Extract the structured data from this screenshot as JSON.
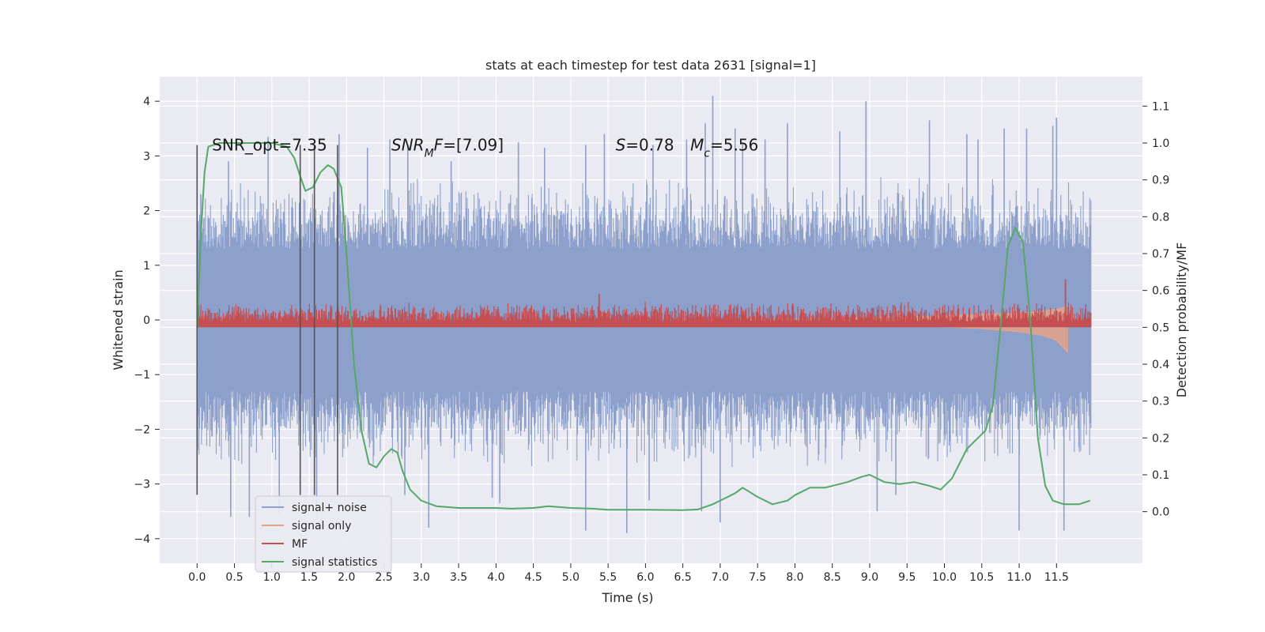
{
  "chart_data": {
    "type": "line",
    "title": "stats at each timestep for test data 2631 [signal=1]",
    "xlabel": "Time (s)",
    "ylabel": "Whitened strain",
    "ylabel_right": "Detection probability/MF",
    "xlim": [
      -0.5,
      12.65
    ],
    "ylim": [
      -4.45,
      4.45
    ],
    "ylim_right": [
      -0.14,
      1.18
    ],
    "x_ticks": [
      0.0,
      0.5,
      1.0,
      1.5,
      2.0,
      2.5,
      3.0,
      3.5,
      4.0,
      4.5,
      5.0,
      5.5,
      6.0,
      6.5,
      7.0,
      7.5,
      8.0,
      8.5,
      9.0,
      9.5,
      10.0,
      10.5,
      11.0,
      11.5
    ],
    "x_tick_labels": [
      "0.0",
      "0.5",
      "1.0",
      "1.5",
      "2.0",
      "2.5",
      "3.0",
      "3.5",
      "4.0",
      "4.5",
      "5.0",
      "5.5",
      "6.0",
      "6.5",
      "7.0",
      "7.5",
      "8.0",
      "8.5",
      "9.0",
      "9.5",
      "10.0",
      "10.5",
      "11.0",
      "11.5"
    ],
    "y_ticks": [
      4,
      3,
      2,
      1,
      0,
      -1,
      -2,
      -3,
      -4
    ],
    "y_tick_labels": [
      "4",
      "3",
      "2",
      "1",
      "0",
      "−1",
      "−2",
      "−3",
      "−4"
    ],
    "y_right_ticks": [
      1.1,
      1.0,
      0.9,
      0.8,
      0.7,
      0.6,
      0.5,
      0.4,
      0.3,
      0.2,
      0.1,
      0.0
    ],
    "y_right_tick_labels": [
      "1.1",
      "1.0",
      "0.9",
      "0.8",
      "0.7",
      "0.6",
      "0.5",
      "0.4",
      "0.3",
      "0.2",
      "0.1",
      "0.0"
    ],
    "grid": true,
    "legend_position": "lower-left",
    "series": [
      {
        "name": "signal+ noise",
        "color": "#8da0cb",
        "axis": "left",
        "x_range": [
          0.0,
          11.96
        ],
        "envelope_upper_typical": 1.8,
        "envelope_lower_typical": -1.9,
        "peaks_upper": [
          [
            0.05,
            2.3
          ],
          [
            0.42,
            2.9
          ],
          [
            0.95,
            3.35
          ],
          [
            1.9,
            3.4
          ],
          [
            2.28,
            3.15
          ],
          [
            2.58,
            3.3
          ],
          [
            2.82,
            3.2
          ],
          [
            3.4,
            2.9
          ],
          [
            4.3,
            3.25
          ],
          [
            4.65,
            3.15
          ],
          [
            5.2,
            3.2
          ],
          [
            5.45,
            3.4
          ],
          [
            6.1,
            3.2
          ],
          [
            6.55,
            3.3
          ],
          [
            6.8,
            3.6
          ],
          [
            6.9,
            4.1
          ],
          [
            7.2,
            3.5
          ],
          [
            7.3,
            3.25
          ],
          [
            7.6,
            3.3
          ],
          [
            7.9,
            3.6
          ],
          [
            8.6,
            3.45
          ],
          [
            8.95,
            4.0
          ],
          [
            9.8,
            3.65
          ],
          [
            10.3,
            3.4
          ],
          [
            10.45,
            3.3
          ],
          [
            10.8,
            3.5
          ],
          [
            11.1,
            3.5
          ],
          [
            11.45,
            3.55
          ],
          [
            11.5,
            3.7
          ]
        ],
        "peaks_lower": [
          [
            0.45,
            -3.6
          ],
          [
            0.7,
            -3.6
          ],
          [
            1.1,
            -3.55
          ],
          [
            1.6,
            -3.6
          ],
          [
            2.78,
            -3.2
          ],
          [
            3.1,
            -3.8
          ],
          [
            3.95,
            -3.25
          ],
          [
            4.05,
            -3.35
          ],
          [
            5.2,
            -3.85
          ],
          [
            5.75,
            -3.9
          ],
          [
            6.05,
            -3.3
          ],
          [
            6.75,
            -3.5
          ],
          [
            7.0,
            -3.7
          ],
          [
            9.1,
            -3.5
          ],
          [
            9.35,
            -3.2
          ],
          [
            11.0,
            -3.85
          ],
          [
            11.6,
            -3.85
          ]
        ]
      },
      {
        "name": "signal only",
        "color": "#e5a288",
        "axis": "left",
        "x": [
          6.8,
          7.5,
          8.0,
          8.5,
          9.0,
          9.5,
          10.0,
          10.5,
          11.0,
          11.3,
          11.5,
          11.65
        ],
        "upper": [
          0.0,
          0.01,
          0.02,
          0.03,
          0.05,
          0.06,
          0.08,
          0.1,
          0.13,
          0.16,
          0.2,
          0.25
        ],
        "lower": [
          0.0,
          -0.02,
          -0.04,
          -0.06,
          -0.08,
          -0.1,
          -0.13,
          -0.16,
          -0.22,
          -0.28,
          -0.38,
          -0.6
        ]
      },
      {
        "name": "MF",
        "color": "#c44e52",
        "axis": "right",
        "x_range": [
          0.0,
          11.96
        ],
        "baseline": 0.5,
        "band_upper_typical": 0.55,
        "spikes": [
          [
            0.02,
            0.56
          ],
          [
            5.38,
            0.59
          ],
          [
            11.62,
            0.63
          ]
        ]
      },
      {
        "name": "signal statistics",
        "color": "#55a868",
        "axis": "right",
        "x": [
          0.0,
          0.05,
          0.1,
          0.15,
          0.3,
          0.5,
          0.8,
          1.0,
          1.2,
          1.3,
          1.38,
          1.45,
          1.55,
          1.65,
          1.75,
          1.83,
          1.93,
          2.0,
          2.1,
          2.2,
          2.3,
          2.4,
          2.5,
          2.6,
          2.68,
          2.75,
          2.85,
          3.0,
          3.2,
          3.5,
          4.0,
          4.2,
          4.5,
          4.7,
          5.0,
          5.3,
          5.5,
          6.0,
          6.5,
          6.7,
          6.9,
          7.1,
          7.2,
          7.3,
          7.5,
          7.7,
          7.9,
          8.0,
          8.2,
          8.4,
          8.7,
          8.9,
          9.0,
          9.2,
          9.4,
          9.6,
          9.8,
          9.95,
          10.1,
          10.3,
          10.45,
          10.55,
          10.65,
          10.75,
          10.85,
          10.95,
          11.05,
          11.15,
          11.25,
          11.35,
          11.45,
          11.6,
          11.8,
          11.95
        ],
        "y": [
          0.5,
          0.75,
          0.92,
          0.99,
          1.0,
          1.0,
          1.0,
          1.0,
          0.99,
          0.96,
          0.91,
          0.87,
          0.88,
          0.92,
          0.94,
          0.93,
          0.88,
          0.7,
          0.4,
          0.22,
          0.13,
          0.12,
          0.15,
          0.17,
          0.16,
          0.11,
          0.06,
          0.03,
          0.015,
          0.01,
          0.01,
          0.008,
          0.01,
          0.015,
          0.01,
          0.008,
          0.005,
          0.005,
          0.004,
          0.006,
          0.02,
          0.04,
          0.05,
          0.065,
          0.04,
          0.02,
          0.03,
          0.045,
          0.065,
          0.065,
          0.08,
          0.095,
          0.1,
          0.08,
          0.075,
          0.08,
          0.07,
          0.06,
          0.09,
          0.17,
          0.2,
          0.22,
          0.29,
          0.5,
          0.72,
          0.77,
          0.73,
          0.52,
          0.2,
          0.07,
          0.03,
          0.02,
          0.02,
          0.03
        ]
      }
    ],
    "vertical_lines": [
      {
        "x": 0.0,
        "y_top": 3.2,
        "y_bottom": -3.2
      },
      {
        "x": 1.38,
        "y_top": 3.2,
        "y_bottom": -3.2
      },
      {
        "x": 1.57,
        "y_top": 3.2,
        "y_bottom": -3.2
      },
      {
        "x": 1.88,
        "y_top": 3.2,
        "y_bottom": -3.2
      }
    ],
    "annotations": [
      {
        "text": "SNR_opt=7.35",
        "x": 0.2,
        "y": 3.2
      },
      {
        "text_parts": [
          {
            "t": "SNR",
            "i": true
          },
          {
            "t": "M",
            "i": true,
            "sub": true
          },
          {
            "t": "F",
            "i": true
          },
          {
            "t": "=[7.09]",
            "i": false
          }
        ],
        "x": 2.6,
        "y": 3.2
      },
      {
        "text_parts": [
          {
            "t": "S",
            "i": true
          },
          {
            "t": "=0.78",
            "i": false
          }
        ],
        "x": 5.6,
        "y": 3.2
      },
      {
        "text_parts": [
          {
            "t": "M",
            "i": true
          },
          {
            "t": "c",
            "i": true,
            "sub": true
          },
          {
            "t": "=5.56",
            "i": false
          }
        ],
        "x": 6.6,
        "y": 3.2
      }
    ]
  }
}
